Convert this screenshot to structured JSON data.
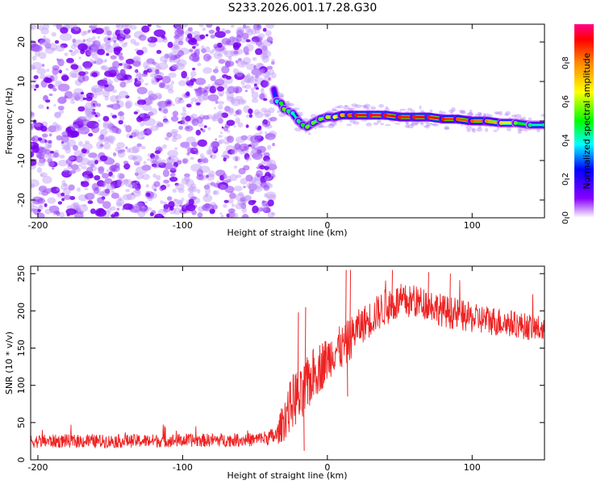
{
  "title": "S233.2026.001.17.28.G30",
  "chart_data": [
    {
      "type": "heatmap",
      "title": "S233.2026.001.17.28.G30",
      "xlabel": "Height of straight line (km)",
      "ylabel": "Frequency (Hz)",
      "xlim": [
        -205,
        150
      ],
      "ylim": [
        -24.5,
        24.5
      ],
      "xticks": [
        -200,
        -100,
        0,
        100
      ],
      "xtick_labels": [
        "-200",
        "-100",
        "0",
        "100"
      ],
      "yticks": [
        -20,
        -10,
        0,
        10,
        20
      ],
      "ytick_labels": [
        "-20",
        "-10",
        "0",
        "10",
        "20"
      ],
      "noise_region_x": [
        -205,
        -37
      ],
      "signal_track": {
        "x": [
          -37,
          -35,
          -32,
          -30,
          -27,
          -24,
          -20,
          -17,
          -14,
          -10,
          -5,
          0,
          5,
          10,
          15,
          20,
          30,
          40,
          50,
          60,
          70,
          80,
          90,
          100,
          110,
          120,
          130,
          140,
          150
        ],
        "frequency": [
          8.0,
          5.0,
          4.5,
          3.0,
          2.5,
          2.0,
          0.0,
          -1.0,
          -1.5,
          -0.5,
          0.5,
          1.0,
          1.0,
          1.5,
          1.5,
          1.5,
          1.5,
          1.5,
          1.0,
          1.0,
          1.0,
          0.5,
          0.5,
          0.0,
          0.0,
          -0.5,
          -0.5,
          -1.0,
          -1.0
        ],
        "amplitude": [
          0.15,
          0.4,
          0.5,
          0.55,
          0.45,
          0.4,
          0.45,
          0.5,
          0.55,
          0.55,
          0.55,
          0.6,
          0.65,
          0.75,
          0.85,
          0.9,
          0.95,
          0.95,
          0.9,
          0.9,
          0.95,
          0.9,
          0.85,
          0.85,
          0.8,
          0.7,
          0.55,
          0.45,
          0.4
        ]
      },
      "colorbar": {
        "label": "Normalized spectral amplitude",
        "range": [
          0,
          1
        ],
        "ticks": [
          0.0,
          0.2,
          0.4,
          0.6,
          0.8
        ],
        "tick_labels": [
          "0.0",
          "0.2",
          "0.4",
          "0.6",
          "0.8"
        ]
      }
    },
    {
      "type": "line",
      "xlabel": "Height of straight line (km)",
      "ylabel": "SNR (10 * v/v)",
      "xlim": [
        -205,
        150
      ],
      "ylim": [
        0,
        260
      ],
      "xticks": [
        -200,
        -100,
        0,
        100
      ],
      "xtick_labels": [
        "-200",
        "-100",
        "0",
        "100"
      ],
      "yticks": [
        0,
        50,
        100,
        150,
        200,
        250
      ],
      "ytick_labels": [
        "0",
        "50",
        "100",
        "150",
        "200",
        "250"
      ],
      "series": [
        {
          "name": "SNR",
          "color": "#ee2222",
          "x": [
            -205,
            -150,
            -100,
            -50,
            -35,
            -30,
            -25,
            -22,
            -18,
            -15,
            -10,
            -5,
            0,
            5,
            10,
            15,
            20,
            30,
            40,
            50,
            60,
            70,
            80,
            90,
            100,
            110,
            120,
            130,
            140,
            150
          ],
          "y": [
            25,
            25,
            26,
            27,
            32,
            55,
            75,
            85,
            80,
            95,
            115,
            125,
            135,
            148,
            150,
            160,
            175,
            190,
            205,
            212,
            212,
            210,
            200,
            195,
            190,
            188,
            185,
            182,
            178,
            175
          ],
          "noise_amplitude": [
            9,
            9,
            9,
            9,
            12,
            30,
            35,
            40,
            40,
            40,
            35,
            35,
            30,
            30,
            30,
            30,
            25,
            25,
            25,
            25,
            22,
            22,
            22,
            22,
            20,
            20,
            20,
            18,
            18,
            18
          ]
        }
      ]
    }
  ]
}
